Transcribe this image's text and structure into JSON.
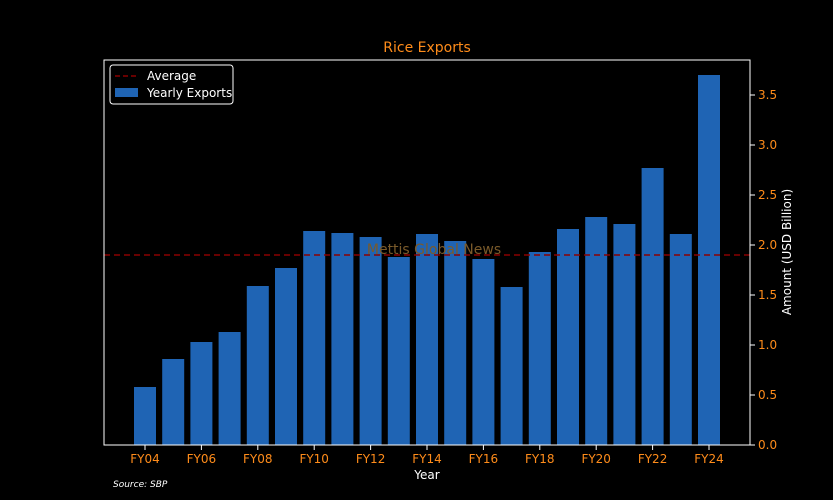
{
  "chart_data": {
    "type": "bar",
    "title": "Rice Exports",
    "xlabel": "Year",
    "ylabel": "Amount (USD Billion)",
    "categories": [
      "FY04",
      "FY05",
      "FY06",
      "FY07",
      "FY08",
      "FY09",
      "FY10",
      "FY11",
      "FY12",
      "FY13",
      "FY14",
      "FY15",
      "FY16",
      "FY17",
      "FY18",
      "FY19",
      "FY20",
      "FY21",
      "FY22",
      "FY23",
      "FY24"
    ],
    "xtick_labels": [
      "FY04",
      "FY06",
      "FY08",
      "FY10",
      "FY12",
      "FY14",
      "FY16",
      "FY18",
      "FY20",
      "FY22",
      "FY24"
    ],
    "series": [
      {
        "name": "Yearly Exports",
        "color": "#1f64b4",
        "values": [
          0.58,
          0.86,
          1.03,
          1.13,
          1.59,
          1.77,
          2.14,
          2.12,
          2.08,
          1.88,
          2.11,
          2.04,
          1.86,
          1.58,
          1.93,
          2.16,
          2.28,
          2.21,
          2.77,
          2.11,
          3.7
        ]
      }
    ],
    "average": {
      "name": "Average",
      "value": 1.9,
      "color": "#8b0000"
    },
    "ylim": [
      0,
      3.85
    ],
    "yticks": [
      0.0,
      0.5,
      1.0,
      1.5,
      2.0,
      2.5,
      3.0,
      3.5
    ],
    "y_axis_side": "right",
    "grid": false,
    "legend_position": "top-left",
    "watermark": "Mettis Global News",
    "source": "Source: SBP",
    "colors": {
      "background": "#000000",
      "accent": "#ff8c1a",
      "text": "#ffffff",
      "bar": "#1f64b4",
      "average": "#8b0000",
      "watermark": "#7a5a2a"
    }
  }
}
